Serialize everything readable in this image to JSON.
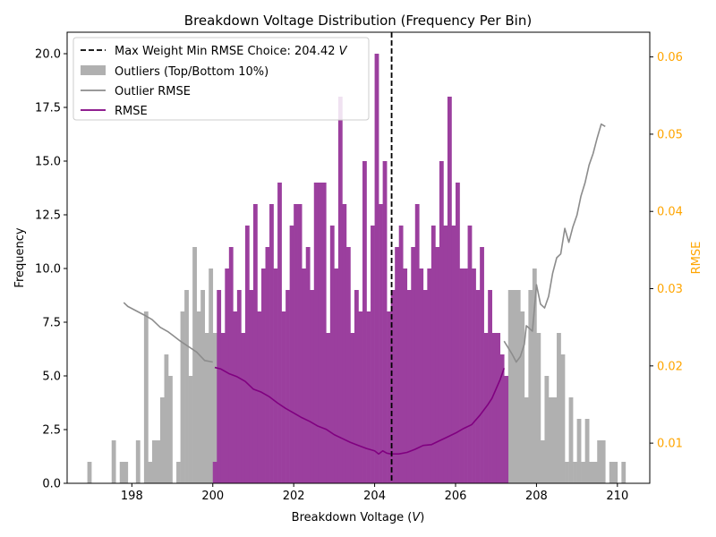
{
  "chart_data": {
    "type": "bar",
    "title": "Breakdown Voltage Distribution (Frequency Per Bin)",
    "xlabel": "Breakdown Voltage (V)",
    "ylabel": "Frequency",
    "ylabel_right": "RMSE",
    "xlim": [
      196.4,
      210.8
    ],
    "ylim": [
      0,
      21
    ],
    "ylim_right": [
      0.0048,
      0.0632
    ],
    "x_ticks": [
      198,
      200,
      202,
      204,
      206,
      208,
      210
    ],
    "x_tick_labels": [
      "198",
      "200",
      "202",
      "204",
      "206",
      "208",
      "210"
    ],
    "y_ticks": [
      0,
      2.5,
      5,
      7.5,
      10,
      12.5,
      15,
      17.5,
      20
    ],
    "y_tick_labels": [
      "0.0",
      "2.5",
      "5.0",
      "7.5",
      "10.0",
      "12.5",
      "15.0",
      "17.5",
      "20.0"
    ],
    "y_right_ticks": [
      0.01,
      0.02,
      0.03,
      0.04,
      0.05,
      0.06
    ],
    "y_right_tick_labels": [
      "0.01",
      "0.02",
      "0.03",
      "0.04",
      "0.05",
      "0.06"
    ],
    "bin_width": 0.1,
    "legend": {
      "placement": "upper-left",
      "entries": [
        {
          "label": "Max Weight Min RMSE Choice: 204.42 V",
          "style": "dashed-line"
        },
        {
          "label": "Outliers (Top/Bottom 10%)",
          "style": "patch"
        },
        {
          "label": "Outlier RMSE",
          "style": "line"
        },
        {
          "label": "RMSE",
          "style": "line"
        }
      ]
    },
    "vline": {
      "x": 204.42,
      "color": "#000000"
    },
    "colors": {
      "main": "#9b3f9e",
      "outlier": "#b0b0b0",
      "rmse": "#800080",
      "outlier_rmse": "#8c8c8c",
      "right_axis": "#ffa500"
    },
    "outlier_low_bins": [
      {
        "x": 196.9,
        "y": 1
      },
      {
        "x": 197.5,
        "y": 2
      },
      {
        "x": 197.7,
        "y": 1
      },
      {
        "x": 197.8,
        "y": 1
      },
      {
        "x": 198.1,
        "y": 2
      },
      {
        "x": 198.3,
        "y": 8
      },
      {
        "x": 198.4,
        "y": 1
      },
      {
        "x": 198.5,
        "y": 2
      },
      {
        "x": 198.6,
        "y": 2
      },
      {
        "x": 198.7,
        "y": 4
      },
      {
        "x": 198.8,
        "y": 6
      },
      {
        "x": 198.9,
        "y": 5
      },
      {
        "x": 199.1,
        "y": 1
      },
      {
        "x": 199.2,
        "y": 8
      },
      {
        "x": 199.3,
        "y": 9
      },
      {
        "x": 199.4,
        "y": 5
      },
      {
        "x": 199.5,
        "y": 11
      },
      {
        "x": 199.6,
        "y": 8
      },
      {
        "x": 199.7,
        "y": 9
      },
      {
        "x": 199.8,
        "y": 7
      },
      {
        "x": 199.9,
        "y": 10
      },
      {
        "x": 200.0,
        "y": 7
      }
    ],
    "main_bins": [
      {
        "x": 200.0,
        "y": 1
      },
      {
        "x": 200.1,
        "y": 9
      },
      {
        "x": 200.2,
        "y": 7
      },
      {
        "x": 200.3,
        "y": 10
      },
      {
        "x": 200.4,
        "y": 11
      },
      {
        "x": 200.5,
        "y": 8
      },
      {
        "x": 200.6,
        "y": 9
      },
      {
        "x": 200.7,
        "y": 7
      },
      {
        "x": 200.8,
        "y": 12
      },
      {
        "x": 200.9,
        "y": 9
      },
      {
        "x": 201.0,
        "y": 13
      },
      {
        "x": 201.1,
        "y": 8
      },
      {
        "x": 201.2,
        "y": 10
      },
      {
        "x": 201.3,
        "y": 11
      },
      {
        "x": 201.4,
        "y": 13
      },
      {
        "x": 201.5,
        "y": 10
      },
      {
        "x": 201.6,
        "y": 14
      },
      {
        "x": 201.7,
        "y": 8
      },
      {
        "x": 201.8,
        "y": 9
      },
      {
        "x": 201.9,
        "y": 12
      },
      {
        "x": 202.0,
        "y": 13
      },
      {
        "x": 202.1,
        "y": 13
      },
      {
        "x": 202.2,
        "y": 10
      },
      {
        "x": 202.3,
        "y": 11
      },
      {
        "x": 202.4,
        "y": 9
      },
      {
        "x": 202.5,
        "y": 14
      },
      {
        "x": 202.6,
        "y": 14
      },
      {
        "x": 202.7,
        "y": 14
      },
      {
        "x": 202.8,
        "y": 7
      },
      {
        "x": 202.9,
        "y": 12
      },
      {
        "x": 203.0,
        "y": 10
      },
      {
        "x": 203.1,
        "y": 18
      },
      {
        "x": 203.2,
        "y": 13
      },
      {
        "x": 203.3,
        "y": 11
      },
      {
        "x": 203.4,
        "y": 7
      },
      {
        "x": 203.5,
        "y": 9
      },
      {
        "x": 203.6,
        "y": 8
      },
      {
        "x": 203.7,
        "y": 15
      },
      {
        "x": 203.8,
        "y": 8
      },
      {
        "x": 203.9,
        "y": 12
      },
      {
        "x": 204.0,
        "y": 20
      },
      {
        "x": 204.1,
        "y": 13
      },
      {
        "x": 204.2,
        "y": 15
      },
      {
        "x": 204.3,
        "y": 8
      },
      {
        "x": 204.4,
        "y": 9
      },
      {
        "x": 204.5,
        "y": 11
      },
      {
        "x": 204.6,
        "y": 12
      },
      {
        "x": 204.7,
        "y": 10
      },
      {
        "x": 204.8,
        "y": 9
      },
      {
        "x": 204.9,
        "y": 11
      },
      {
        "x": 205.0,
        "y": 13
      },
      {
        "x": 205.1,
        "y": 10
      },
      {
        "x": 205.2,
        "y": 9
      },
      {
        "x": 205.3,
        "y": 10
      },
      {
        "x": 205.4,
        "y": 12
      },
      {
        "x": 205.5,
        "y": 11
      },
      {
        "x": 205.6,
        "y": 15
      },
      {
        "x": 205.7,
        "y": 12
      },
      {
        "x": 205.8,
        "y": 18
      },
      {
        "x": 205.9,
        "y": 12
      },
      {
        "x": 206.0,
        "y": 14
      },
      {
        "x": 206.1,
        "y": 10
      },
      {
        "x": 206.2,
        "y": 10
      },
      {
        "x": 206.3,
        "y": 12
      },
      {
        "x": 206.4,
        "y": 10
      },
      {
        "x": 206.5,
        "y": 9
      },
      {
        "x": 206.6,
        "y": 11
      },
      {
        "x": 206.7,
        "y": 7
      },
      {
        "x": 206.8,
        "y": 9
      },
      {
        "x": 206.9,
        "y": 7
      },
      {
        "x": 207.0,
        "y": 7
      },
      {
        "x": 207.1,
        "y": 6
      },
      {
        "x": 207.2,
        "y": 5
      }
    ],
    "outlier_high_bins": [
      {
        "x": 207.2,
        "y": 3
      },
      {
        "x": 207.3,
        "y": 9
      },
      {
        "x": 207.4,
        "y": 9
      },
      {
        "x": 207.5,
        "y": 9
      },
      {
        "x": 207.6,
        "y": 8
      },
      {
        "x": 207.7,
        "y": 4
      },
      {
        "x": 207.8,
        "y": 9
      },
      {
        "x": 207.9,
        "y": 10
      },
      {
        "x": 208.0,
        "y": 7
      },
      {
        "x": 208.1,
        "y": 2
      },
      {
        "x": 208.2,
        "y": 5
      },
      {
        "x": 208.3,
        "y": 4
      },
      {
        "x": 208.4,
        "y": 4
      },
      {
        "x": 208.5,
        "y": 7
      },
      {
        "x": 208.6,
        "y": 6
      },
      {
        "x": 208.7,
        "y": 1
      },
      {
        "x": 208.8,
        "y": 4
      },
      {
        "x": 208.9,
        "y": 1
      },
      {
        "x": 209.0,
        "y": 3
      },
      {
        "x": 209.1,
        "y": 1
      },
      {
        "x": 209.2,
        "y": 3
      },
      {
        "x": 209.3,
        "y": 1
      },
      {
        "x": 209.4,
        "y": 1
      },
      {
        "x": 209.5,
        "y": 2
      },
      {
        "x": 209.6,
        "y": 2
      },
      {
        "x": 209.8,
        "y": 1
      },
      {
        "x": 209.9,
        "y": 1
      },
      {
        "x": 210.1,
        "y": 1
      }
    ],
    "rmse": [
      [
        200.05,
        0.0198
      ],
      [
        200.2,
        0.0196
      ],
      [
        200.4,
        0.019
      ],
      [
        200.6,
        0.0186
      ],
      [
        200.8,
        0.018
      ],
      [
        201.0,
        0.017
      ],
      [
        201.2,
        0.0166
      ],
      [
        201.4,
        0.016
      ],
      [
        201.6,
        0.0152
      ],
      [
        201.8,
        0.0145
      ],
      [
        202.0,
        0.0139
      ],
      [
        202.2,
        0.0133
      ],
      [
        202.4,
        0.0128
      ],
      [
        202.6,
        0.0122
      ],
      [
        202.8,
        0.0118
      ],
      [
        203.0,
        0.0111
      ],
      [
        203.2,
        0.0106
      ],
      [
        203.4,
        0.0101
      ],
      [
        203.6,
        0.0097
      ],
      [
        203.8,
        0.0093
      ],
      [
        204.0,
        0.009
      ],
      [
        204.1,
        0.0086
      ],
      [
        204.2,
        0.009
      ],
      [
        204.3,
        0.0087
      ],
      [
        204.4,
        0.0086
      ],
      [
        204.6,
        0.0086
      ],
      [
        204.8,
        0.0088
      ],
      [
        205.0,
        0.0092
      ],
      [
        205.2,
        0.0097
      ],
      [
        205.4,
        0.0098
      ],
      [
        205.6,
        0.0103
      ],
      [
        205.8,
        0.0108
      ],
      [
        206.0,
        0.0113
      ],
      [
        206.2,
        0.0119
      ],
      [
        206.4,
        0.0124
      ],
      [
        206.6,
        0.0136
      ],
      [
        206.8,
        0.015
      ],
      [
        206.9,
        0.0158
      ],
      [
        207.0,
        0.017
      ],
      [
        207.1,
        0.0182
      ],
      [
        207.2,
        0.0197
      ]
    ],
    "outlier_rmse_low": [
      [
        197.8,
        0.0282
      ],
      [
        197.9,
        0.0277
      ],
      [
        198.3,
        0.0266
      ],
      [
        198.5,
        0.026
      ],
      [
        198.7,
        0.025
      ],
      [
        198.9,
        0.0244
      ],
      [
        199.0,
        0.024
      ],
      [
        199.2,
        0.0232
      ],
      [
        199.4,
        0.0225
      ],
      [
        199.6,
        0.0218
      ],
      [
        199.8,
        0.0207
      ],
      [
        200.0,
        0.0205
      ]
    ],
    "outlier_rmse_high": [
      [
        207.2,
        0.0232
      ],
      [
        207.4,
        0.0215
      ],
      [
        207.5,
        0.0205
      ],
      [
        207.6,
        0.0212
      ],
      [
        207.7,
        0.0228
      ],
      [
        207.75,
        0.0252
      ],
      [
        207.9,
        0.0245
      ],
      [
        208.0,
        0.0305
      ],
      [
        208.1,
        0.028
      ],
      [
        208.2,
        0.0275
      ],
      [
        208.3,
        0.029
      ],
      [
        208.4,
        0.032
      ],
      [
        208.5,
        0.034
      ],
      [
        208.6,
        0.0345
      ],
      [
        208.7,
        0.0378
      ],
      [
        208.8,
        0.036
      ],
      [
        208.9,
        0.038
      ],
      [
        209.0,
        0.0395
      ],
      [
        209.1,
        0.042
      ],
      [
        209.2,
        0.0437
      ],
      [
        209.3,
        0.046
      ],
      [
        209.4,
        0.0475
      ],
      [
        209.5,
        0.0495
      ],
      [
        209.6,
        0.0513
      ],
      [
        209.7,
        0.051
      ]
    ]
  }
}
